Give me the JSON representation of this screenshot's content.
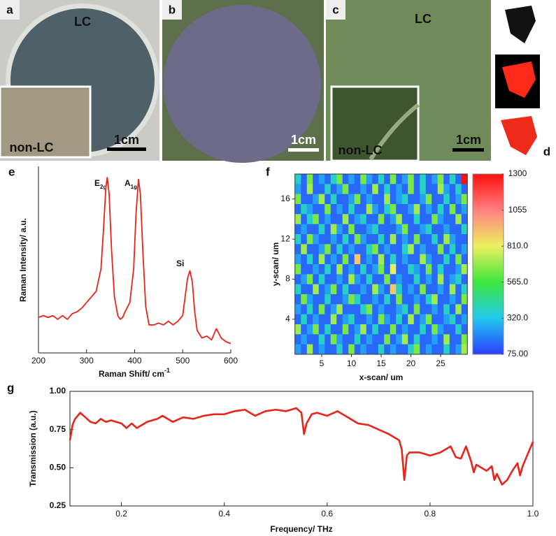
{
  "panels": {
    "a": {
      "label": "a",
      "top_text": "LC",
      "inset_text": "non-LC",
      "scale": "1cm"
    },
    "b": {
      "label": "b",
      "scale": "1cm"
    },
    "c": {
      "label": "c",
      "top_text": "LC",
      "inset_text": "non-LC",
      "scale": "1cm"
    },
    "d": {
      "label": "d"
    }
  },
  "chart_data": [
    {
      "type": "line",
      "panel": "e",
      "xlabel": "Raman Shift/ cm",
      "xlabel_sup": "-1",
      "ylabel": "Raman Intensity/ a.u.",
      "color": "#e8251a",
      "annotations": [
        {
          "text": "E",
          "sub": "2g"
        },
        {
          "text": "A",
          "sub": "1g"
        },
        {
          "text": "Si"
        }
      ],
      "xlim": [
        200,
        600
      ],
      "xticks": [
        200,
        300,
        400,
        500,
        600
      ],
      "ylim": [
        0,
        100
      ],
      "x": [
        200,
        210,
        220,
        230,
        240,
        250,
        260,
        270,
        280,
        290,
        300,
        310,
        320,
        330,
        335,
        340,
        343,
        347,
        352,
        358,
        365,
        370,
        375,
        380,
        390,
        398,
        403,
        408,
        412,
        417,
        423,
        430,
        440,
        450,
        460,
        470,
        480,
        490,
        500,
        505,
        510,
        515,
        520,
        525,
        530,
        540,
        550,
        560,
        570,
        580,
        590,
        600
      ],
      "values": [
        19,
        20,
        19,
        20,
        18,
        20,
        18,
        21,
        22,
        24,
        27,
        30,
        33,
        45,
        65,
        88,
        94,
        85,
        55,
        30,
        20,
        18,
        19,
        22,
        27,
        45,
        75,
        93,
        85,
        55,
        25,
        15,
        15,
        16,
        15,
        17,
        15,
        17,
        20,
        30,
        40,
        44,
        38,
        22,
        12,
        8,
        9,
        7,
        13,
        8,
        6,
        5
      ]
    },
    {
      "type": "heatmap",
      "panel": "f",
      "xlabel": "x-scan/ um",
      "ylabel": "y-scan/ um",
      "xlim": [
        0.5,
        29.5
      ],
      "xticks": [
        5,
        10,
        15,
        20,
        25
      ],
      "ylim": [
        0.5,
        18.5
      ],
      "yticks": [
        4,
        8,
        12,
        16
      ],
      "zlim": [
        75,
        1300
      ],
      "colors": [
        "#2b3dff",
        "#22c8f0",
        "#3ce63c",
        "#eef060",
        "#ff8080",
        "#ff1010"
      ],
      "zticks": [
        {
          "value": 1300,
          "label": "1300"
        },
        {
          "value": 1055,
          "label": "1055"
        },
        {
          "value": 810,
          "label": "810.0"
        },
        {
          "value": 565,
          "label": "565.0"
        },
        {
          "value": 320,
          "label": "320.0"
        },
        {
          "value": 75,
          "label": "75.00"
        }
      ],
      "z": [
        [
          380,
          150,
          650,
          150,
          250,
          150,
          380,
          650,
          150,
          250,
          150,
          650,
          250,
          150,
          380,
          150,
          650,
          150,
          250,
          650,
          150,
          380,
          150,
          250,
          650,
          150,
          380,
          150,
          1300
        ],
        [
          250,
          150,
          700,
          150,
          150,
          380,
          150,
          250,
          650,
          150,
          150,
          250,
          150,
          700,
          150,
          380,
          150,
          250,
          150,
          650,
          150,
          380,
          150,
          150,
          700,
          250,
          150,
          380,
          150
        ],
        [
          650,
          150,
          150,
          250,
          700,
          150,
          380,
          150,
          150,
          250,
          650,
          150,
          250,
          150,
          150,
          700,
          150,
          250,
          380,
          150,
          150,
          250,
          650,
          150,
          150,
          380,
          150,
          250,
          650
        ],
        [
          150,
          380,
          250,
          150,
          150,
          650,
          150,
          250,
          150,
          380,
          150,
          150,
          700,
          250,
          150,
          380,
          650,
          150,
          150,
          250,
          700,
          150,
          250,
          150,
          380,
          150,
          650,
          150,
          250
        ],
        [
          700,
          150,
          380,
          650,
          150,
          250,
          150,
          150,
          700,
          150,
          250,
          380,
          150,
          150,
          650,
          150,
          250,
          700,
          150,
          150,
          380,
          150,
          150,
          650,
          250,
          150,
          150,
          700,
          150
        ],
        [
          150,
          250,
          150,
          150,
          380,
          150,
          700,
          250,
          150,
          650,
          150,
          150,
          250,
          380,
          150,
          150,
          150,
          250,
          650,
          150,
          150,
          250,
          380,
          150,
          150,
          250,
          150,
          150,
          380
        ],
        [
          380,
          150,
          650,
          250,
          150,
          150,
          250,
          150,
          380,
          150,
          650,
          250,
          150,
          150,
          380,
          150,
          700,
          150,
          250,
          150,
          650,
          150,
          150,
          380,
          150,
          700,
          250,
          150,
          150
        ],
        [
          150,
          700,
          150,
          150,
          250,
          650,
          150,
          380,
          150,
          250,
          150,
          150,
          380,
          650,
          150,
          250,
          150,
          150,
          380,
          700,
          150,
          250,
          150,
          150,
          650,
          150,
          380,
          150,
          250
        ],
        [
          250,
          150,
          380,
          150,
          700,
          150,
          250,
          150,
          650,
          150,
          900,
          150,
          250,
          150,
          700,
          150,
          380,
          150,
          250,
          150,
          150,
          700,
          250,
          150,
          150,
          380,
          150,
          650,
          150
        ],
        [
          650,
          150,
          150,
          250,
          150,
          380,
          150,
          700,
          150,
          250,
          150,
          380,
          150,
          250,
          650,
          150,
          800,
          150,
          150,
          380,
          250,
          150,
          650,
          150,
          380,
          150,
          150,
          250,
          700
        ],
        [
          150,
          250,
          650,
          150,
          380,
          150,
          150,
          250,
          150,
          700,
          250,
          150,
          380,
          150,
          150,
          650,
          150,
          250,
          150,
          150,
          380,
          150,
          250,
          150,
          700,
          150,
          250,
          380,
          150
        ],
        [
          380,
          150,
          150,
          700,
          150,
          250,
          650,
          150,
          380,
          150,
          150,
          250,
          150,
          700,
          250,
          150,
          900,
          380,
          150,
          250,
          150,
          650,
          150,
          150,
          250,
          150,
          700,
          150,
          380
        ],
        [
          150,
          650,
          250,
          150,
          150,
          380,
          150,
          150,
          250,
          650,
          380,
          150,
          150,
          250,
          150,
          380,
          150,
          650,
          150,
          150,
          250,
          150,
          380,
          700,
          150,
          150,
          250,
          150,
          650
        ],
        [
          250,
          150,
          380,
          150,
          650,
          150,
          250,
          700,
          150,
          150,
          150,
          380,
          650,
          150,
          250,
          150,
          150,
          250,
          380,
          150,
          650,
          150,
          150,
          250,
          150,
          380,
          150,
          700,
          150
        ],
        [
          150,
          380,
          150,
          250,
          150,
          150,
          700,
          150,
          250,
          380,
          150,
          150,
          250,
          150,
          650,
          250,
          150,
          380,
          150,
          700,
          150,
          250,
          650,
          150,
          150,
          250,
          380,
          150,
          250
        ],
        [
          700,
          150,
          250,
          650,
          150,
          380,
          150,
          150,
          650,
          150,
          250,
          700,
          150,
          380,
          150,
          150,
          650,
          150,
          250,
          150,
          150,
          380,
          150,
          650,
          250,
          150,
          150,
          380,
          150
        ],
        [
          150,
          250,
          150,
          150,
          380,
          150,
          650,
          250,
          150,
          150,
          380,
          150,
          250,
          150,
          150,
          650,
          150,
          250,
          700,
          150,
          380,
          150,
          150,
          250,
          150,
          700,
          150,
          150,
          650
        ],
        [
          250,
          150,
          700,
          150,
          250,
          150,
          150,
          380,
          150,
          650,
          150,
          250,
          150,
          150,
          380,
          150,
          250,
          150,
          150,
          380,
          650,
          150,
          250,
          150,
          150,
          380,
          150,
          250,
          700
        ]
      ]
    },
    {
      "type": "line",
      "panel": "g",
      "xlabel": "Frequency/ THz",
      "ylabel": "Transmission (a.u.)",
      "color": "#e8251a",
      "xlim": [
        0.1,
        1.0
      ],
      "xticks": [
        0.2,
        0.4,
        0.6,
        0.8,
        {
          "value": 1.0,
          "label": "1.0"
        }
      ],
      "ylim": [
        0.25,
        1.0
      ],
      "yticks": [
        0.25,
        {
          "value": 0.5,
          "label": "0.50"
        },
        0.75,
        {
          "value": 1.0,
          "label": "1.00"
        }
      ],
      "x": [
        0.1,
        0.105,
        0.11,
        0.12,
        0.13,
        0.14,
        0.15,
        0.16,
        0.17,
        0.18,
        0.19,
        0.2,
        0.21,
        0.22,
        0.23,
        0.24,
        0.25,
        0.26,
        0.27,
        0.28,
        0.29,
        0.3,
        0.32,
        0.34,
        0.36,
        0.38,
        0.4,
        0.42,
        0.44,
        0.46,
        0.48,
        0.5,
        0.52,
        0.54,
        0.55,
        0.555,
        0.56,
        0.57,
        0.58,
        0.6,
        0.62,
        0.64,
        0.66,
        0.68,
        0.7,
        0.72,
        0.74,
        0.745,
        0.75,
        0.755,
        0.76,
        0.78,
        0.8,
        0.82,
        0.84,
        0.85,
        0.86,
        0.87,
        0.88,
        0.885,
        0.89,
        0.9,
        0.91,
        0.92,
        0.925,
        0.93,
        0.94,
        0.95,
        0.96,
        0.97,
        0.975,
        0.98,
        0.99,
        1.0
      ],
      "values": [
        0.68,
        0.78,
        0.82,
        0.86,
        0.83,
        0.8,
        0.79,
        0.82,
        0.8,
        0.81,
        0.8,
        0.79,
        0.76,
        0.79,
        0.76,
        0.78,
        0.8,
        0.81,
        0.82,
        0.84,
        0.82,
        0.8,
        0.83,
        0.82,
        0.84,
        0.85,
        0.85,
        0.87,
        0.88,
        0.84,
        0.87,
        0.88,
        0.87,
        0.89,
        0.86,
        0.72,
        0.79,
        0.85,
        0.86,
        0.84,
        0.87,
        0.83,
        0.79,
        0.78,
        0.75,
        0.72,
        0.68,
        0.62,
        0.42,
        0.58,
        0.6,
        0.6,
        0.58,
        0.6,
        0.64,
        0.57,
        0.56,
        0.64,
        0.54,
        0.47,
        0.52,
        0.5,
        0.48,
        0.51,
        0.42,
        0.46,
        0.39,
        0.42,
        0.48,
        0.53,
        0.45,
        0.51,
        0.59,
        0.67
      ]
    }
  ]
}
